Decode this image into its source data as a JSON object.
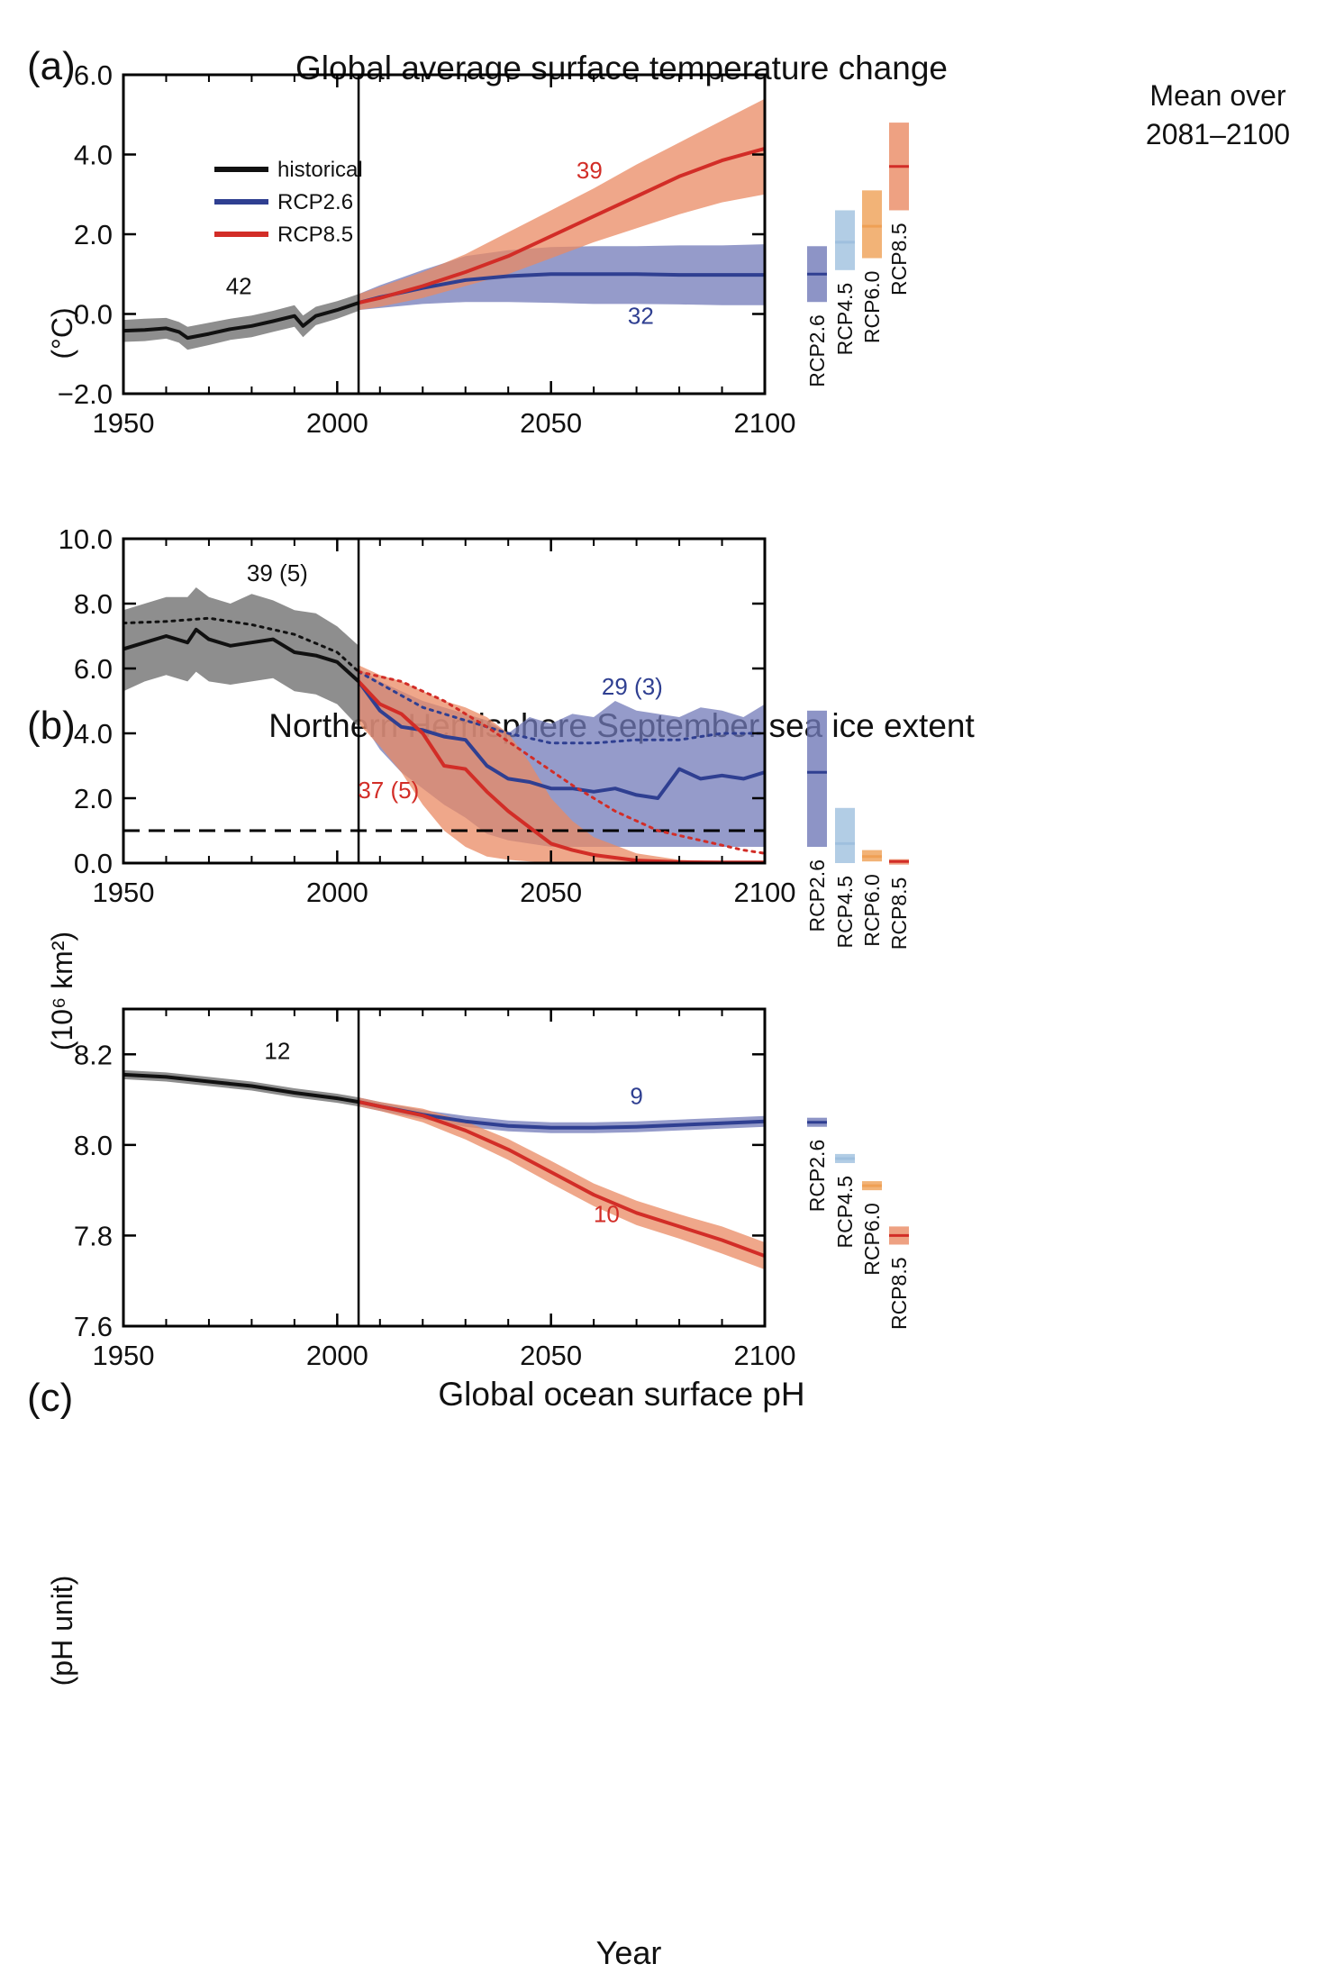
{
  "figure": {
    "mean_title_line1": "Mean over",
    "mean_title_line2": "2081–2100",
    "x_axis_label": "Year",
    "legend": [
      {
        "label": "historical",
        "color": "#111111"
      },
      {
        "label": "RCP2.6",
        "color": "#2f3f91"
      },
      {
        "label": "RCP8.5",
        "color": "#d22d27"
      }
    ]
  },
  "colors": {
    "historical": "#111111",
    "historical_band": "#7a7a7a",
    "rcp26": "#2f3f91",
    "rcp26_band": "#7179b8",
    "rcp45": "#9fc0de",
    "rcp60": "#efa055",
    "rcp85": "#d22d27",
    "rcp85_band": "#ea8a63"
  },
  "chart_data": [
    {
      "type": "line",
      "panel_letter": "(a)",
      "title": "Global average surface temperature change",
      "ylabel": "(°C)",
      "xlim": [
        1950,
        2100
      ],
      "ylim": [
        -2,
        6
      ],
      "xticks": [
        "1950",
        "2000",
        "2050",
        "2100"
      ],
      "yticks": [
        "−2.0",
        "0.0",
        "2.0",
        "4.0",
        "6.0"
      ],
      "vertical_line_x": 2005,
      "series": [
        {
          "name": "historical",
          "x": [
            1950,
            1955,
            1960,
            1963,
            1965,
            1970,
            1975,
            1980,
            1985,
            1990,
            1992,
            1995,
            2000,
            2005
          ],
          "y": [
            -0.42,
            -0.4,
            -0.36,
            -0.45,
            -0.6,
            -0.5,
            -0.38,
            -0.3,
            -0.18,
            -0.05,
            -0.3,
            -0.05,
            0.1,
            0.28
          ],
          "band_low": [
            -0.7,
            -0.68,
            -0.62,
            -0.72,
            -0.9,
            -0.78,
            -0.65,
            -0.58,
            -0.45,
            -0.32,
            -0.58,
            -0.28,
            -0.12,
            0.08
          ],
          "band_high": [
            -0.15,
            -0.12,
            -0.1,
            -0.2,
            -0.32,
            -0.22,
            -0.12,
            -0.04,
            0.08,
            0.22,
            -0.04,
            0.18,
            0.32,
            0.5
          ]
        },
        {
          "name": "RCP2.6",
          "x": [
            2005,
            2010,
            2020,
            2030,
            2040,
            2050,
            2060,
            2070,
            2080,
            2090,
            2100
          ],
          "y": [
            0.28,
            0.42,
            0.65,
            0.85,
            0.95,
            1.0,
            1.0,
            1.0,
            0.98,
            0.98,
            0.98
          ],
          "band_low": [
            0.1,
            0.15,
            0.25,
            0.3,
            0.3,
            0.28,
            0.25,
            0.25,
            0.24,
            0.22,
            0.22
          ],
          "band_high": [
            0.5,
            0.72,
            1.1,
            1.45,
            1.6,
            1.68,
            1.7,
            1.7,
            1.72,
            1.72,
            1.75
          ]
        },
        {
          "name": "RCP8.5",
          "x": [
            2005,
            2010,
            2020,
            2030,
            2040,
            2050,
            2060,
            2070,
            2080,
            2090,
            2100
          ],
          "y": [
            0.28,
            0.4,
            0.7,
            1.05,
            1.45,
            1.95,
            2.45,
            2.95,
            3.45,
            3.85,
            4.15
          ],
          "band_low": [
            0.1,
            0.18,
            0.4,
            0.7,
            1.0,
            1.4,
            1.8,
            2.15,
            2.5,
            2.8,
            3.0
          ],
          "band_high": [
            0.5,
            0.68,
            1.05,
            1.5,
            2.05,
            2.6,
            3.15,
            3.75,
            4.3,
            4.85,
            5.4
          ]
        }
      ],
      "annotations": [
        {
          "text": "42",
          "x": 1977,
          "y": 0.5,
          "series": "historical"
        },
        {
          "text": "39",
          "x": 2059,
          "y": 3.4,
          "series": "RCP8.5"
        },
        {
          "text": "32",
          "x": 2071,
          "y": -0.25,
          "series": "RCP2.6"
        }
      ],
      "mean_bars": [
        {
          "name": "RCP2.6",
          "mean": 1.0,
          "low": 0.3,
          "high": 1.7
        },
        {
          "name": "RCP4.5",
          "mean": 1.8,
          "low": 1.1,
          "high": 2.6
        },
        {
          "name": "RCP6.0",
          "mean": 2.2,
          "low": 1.4,
          "high": 3.1
        },
        {
          "name": "RCP8.5",
          "mean": 3.7,
          "low": 2.6,
          "high": 4.8
        }
      ]
    },
    {
      "type": "line",
      "panel_letter": "(b)",
      "title": "Northern Hemisphere September sea ice extent",
      "ylabel": "(10⁶ km²)",
      "xlim": [
        1950,
        2100
      ],
      "ylim": [
        0,
        10
      ],
      "xticks": [
        "1950",
        "2000",
        "2050",
        "2100"
      ],
      "yticks": [
        "0.0",
        "2.0",
        "4.0",
        "6.0",
        "8.0",
        "10.0"
      ],
      "vertical_line_x": 2005,
      "threshold_y": 1.0,
      "series": [
        {
          "name": "historical",
          "x": [
            1950,
            1955,
            1960,
            1965,
            1967,
            1970,
            1975,
            1980,
            1985,
            1990,
            1995,
            2000,
            2005
          ],
          "y": [
            6.6,
            6.8,
            7.0,
            6.8,
            7.2,
            6.9,
            6.7,
            6.8,
            6.9,
            6.5,
            6.4,
            6.2,
            5.6
          ],
          "band_low": [
            5.3,
            5.6,
            5.8,
            5.6,
            5.9,
            5.6,
            5.5,
            5.6,
            5.7,
            5.3,
            5.2,
            4.9,
            4.2
          ],
          "band_high": [
            7.8,
            8.0,
            8.2,
            8.2,
            8.5,
            8.2,
            8.0,
            8.3,
            8.1,
            7.8,
            7.7,
            7.3,
            6.7
          ]
        },
        {
          "name": "historical mean (dotted)",
          "style": "dotted",
          "x": [
            1950,
            1960,
            1970,
            1980,
            1990,
            2000,
            2005
          ],
          "y": [
            7.4,
            7.45,
            7.55,
            7.35,
            7.05,
            6.5,
            5.9
          ]
        },
        {
          "name": "RCP2.6",
          "x": [
            2005,
            2010,
            2015,
            2020,
            2025,
            2030,
            2035,
            2040,
            2045,
            2050,
            2055,
            2060,
            2065,
            2070,
            2075,
            2080,
            2085,
            2090,
            2095,
            2100
          ],
          "y": [
            5.6,
            4.7,
            4.2,
            4.1,
            3.9,
            3.8,
            3.0,
            2.6,
            2.5,
            2.3,
            2.3,
            2.2,
            2.3,
            2.1,
            2.0,
            2.9,
            2.6,
            2.7,
            2.6,
            2.8
          ],
          "band_low": [
            4.5,
            3.5,
            2.8,
            2.3,
            1.8,
            1.4,
            0.9,
            0.7,
            0.6,
            0.5,
            0.5,
            0.5,
            0.5,
            0.5,
            0.5,
            0.5,
            0.5,
            0.5,
            0.5,
            0.5
          ],
          "band_high": [
            6.0,
            5.6,
            5.3,
            5.0,
            4.8,
            4.6,
            4.4,
            4.0,
            4.5,
            4.3,
            4.6,
            4.5,
            5.0,
            4.7,
            4.6,
            4.5,
            4.8,
            4.7,
            4.5,
            4.9
          ]
        },
        {
          "name": "RCP2.6 mean (dotted)",
          "style": "dotted",
          "x": [
            2005,
            2020,
            2030,
            2040,
            2050,
            2060,
            2070,
            2080,
            2090,
            2100
          ],
          "y": [
            5.9,
            4.8,
            4.4,
            4.0,
            3.7,
            3.7,
            3.8,
            3.8,
            4.0,
            4.0
          ]
        },
        {
          "name": "RCP8.5",
          "x": [
            2005,
            2010,
            2015,
            2020,
            2025,
            2030,
            2035,
            2040,
            2045,
            2050,
            2055,
            2060,
            2070,
            2080,
            2090,
            2100
          ],
          "y": [
            5.6,
            4.9,
            4.6,
            4.0,
            3.0,
            2.9,
            2.2,
            1.6,
            1.1,
            0.6,
            0.4,
            0.25,
            0.08,
            0.03,
            0.02,
            0.02
          ],
          "band_low": [
            4.3,
            3.6,
            2.8,
            1.8,
            1.0,
            0.5,
            0.2,
            0.1,
            0.05,
            0.02,
            0.0,
            0.0,
            0.0,
            0.0,
            0.0,
            0.0
          ],
          "band_high": [
            6.1,
            5.8,
            5.6,
            5.3,
            5.0,
            4.8,
            4.5,
            4.0,
            3.1,
            2.0,
            1.3,
            0.8,
            0.3,
            0.1,
            0.05,
            0.05
          ]
        },
        {
          "name": "RCP8.5 mean (dotted)",
          "style": "dotted",
          "x": [
            2005,
            2015,
            2025,
            2035,
            2045,
            2055,
            2065,
            2075,
            2085,
            2095,
            2100
          ],
          "y": [
            5.9,
            5.6,
            5.0,
            4.2,
            3.3,
            2.4,
            1.6,
            1.0,
            0.7,
            0.4,
            0.3
          ]
        }
      ],
      "annotations": [
        {
          "text": "39 (5)",
          "x": 1986,
          "y": 8.7,
          "series": "historical"
        },
        {
          "text": "29 (3)",
          "x": 2069,
          "y": 5.2,
          "series": "RCP2.6"
        },
        {
          "text": "37 (5)",
          "x": 2012,
          "y": 2.0,
          "series": "RCP8.5"
        }
      ],
      "mean_bars": [
        {
          "name": "RCP2.6",
          "mean": 2.8,
          "low": 0.5,
          "high": 4.7
        },
        {
          "name": "RCP4.5",
          "mean": 0.6,
          "low": 0.0,
          "high": 1.7
        },
        {
          "name": "RCP6.0",
          "mean": 0.2,
          "low": 0.05,
          "high": 0.4
        },
        {
          "name": "RCP8.5",
          "mean": 0.05,
          "low": 0.0,
          "high": 0.12
        }
      ]
    },
    {
      "type": "line",
      "panel_letter": "(c)",
      "title": "Global ocean surface pH",
      "ylabel": "(pH unit)",
      "xlim": [
        1950,
        2100
      ],
      "ylim": [
        7.6,
        8.3
      ],
      "xticks": [
        "1950",
        "2000",
        "2050",
        "2100"
      ],
      "yticks": [
        "7.6",
        "7.8",
        "8.0",
        "8.2"
      ],
      "vertical_line_x": 2005,
      "series": [
        {
          "name": "historical",
          "x": [
            1950,
            1960,
            1970,
            1980,
            1990,
            2000,
            2005
          ],
          "y": [
            8.155,
            8.15,
            8.14,
            8.13,
            8.115,
            8.103,
            8.095
          ],
          "band_low": [
            8.145,
            8.14,
            8.13,
            8.12,
            8.105,
            8.093,
            8.085
          ],
          "band_high": [
            8.165,
            8.16,
            8.15,
            8.14,
            8.125,
            8.113,
            8.105
          ]
        },
        {
          "name": "RCP2.6",
          "x": [
            2005,
            2010,
            2020,
            2030,
            2040,
            2050,
            2060,
            2070,
            2080,
            2090,
            2100
          ],
          "y": [
            8.095,
            8.085,
            8.067,
            8.052,
            8.042,
            8.038,
            8.038,
            8.04,
            8.044,
            8.048,
            8.052
          ],
          "band_low": [
            8.085,
            8.075,
            8.057,
            8.04,
            8.03,
            8.026,
            8.026,
            8.028,
            8.032,
            8.036,
            8.04
          ],
          "band_high": [
            8.105,
            8.095,
            8.077,
            8.064,
            8.054,
            8.05,
            8.05,
            8.052,
            8.056,
            8.06,
            8.064
          ]
        },
        {
          "name": "RCP8.5",
          "x": [
            2005,
            2010,
            2020,
            2030,
            2040,
            2050,
            2060,
            2070,
            2080,
            2090,
            2100
          ],
          "y": [
            8.095,
            8.085,
            8.065,
            8.032,
            7.99,
            7.94,
            7.89,
            7.85,
            7.82,
            7.79,
            7.755
          ],
          "band_low": [
            8.085,
            8.075,
            8.05,
            8.012,
            7.967,
            7.915,
            7.865,
            7.823,
            7.793,
            7.76,
            7.725
          ],
          "band_high": [
            8.105,
            8.095,
            8.08,
            8.052,
            8.013,
            7.965,
            7.915,
            7.877,
            7.847,
            7.82,
            7.785
          ]
        }
      ],
      "annotations": [
        {
          "text": "12",
          "x": 1986,
          "y": 8.19,
          "series": "historical"
        },
        {
          "text": "9",
          "x": 2070,
          "y": 8.09,
          "series": "RCP2.6"
        },
        {
          "text": "10",
          "x": 2063,
          "y": 7.83,
          "series": "RCP8.5"
        }
      ],
      "mean_bars": [
        {
          "name": "RCP2.6",
          "mean": 8.05,
          "low": 8.04,
          "high": 8.06
        },
        {
          "name": "RCP4.5",
          "mean": 7.97,
          "low": 7.96,
          "high": 7.98
        },
        {
          "name": "RCP6.0",
          "mean": 7.91,
          "low": 7.9,
          "high": 7.92
        },
        {
          "name": "RCP8.5",
          "mean": 7.8,
          "low": 7.78,
          "high": 7.82
        }
      ]
    }
  ]
}
